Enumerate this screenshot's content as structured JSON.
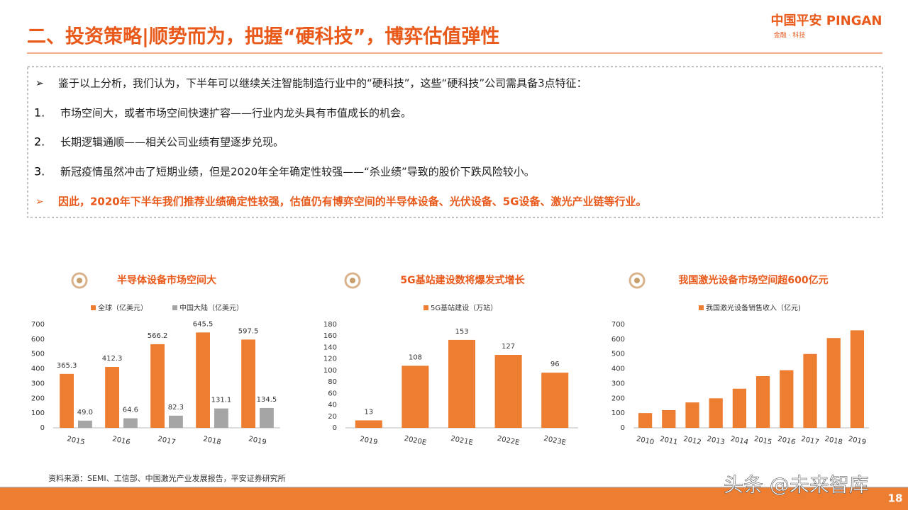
{
  "header": {
    "title": "二、投资策略|顺势而为，把握“硬科技”，博弈估值弹性",
    "logo": "中国平安 PINGAN",
    "logo_sub": "金融 · 科技"
  },
  "bullets": [
    {
      "text": "鉴于以上分析，我们认为，下半年可以继续关注智能制造行业中的“硬科技”，这些“硬科技”公司需具备3点特征："
    },
    {
      "marker": "1.",
      "text": "市场空间大，或者市场空间快速扩容——行业内龙头具有市值成长的机会。"
    },
    {
      "marker": "2.",
      "text": "长期逻辑通顺——相关公司业绩有望逐步兑现。"
    },
    {
      "marker": "3.",
      "text": "新冠疫情虽然冲击了短期业绩，但是2020年全年确定性较强——“杀业绩”导致的股价下跌风险较小。"
    },
    {
      "text": "因此，2020年下半年我们推荐业绩确定性较强，估值仍有博弈空间的半导体设备、光伏设备、5G设备、激光产业链等行业。"
    }
  ],
  "chart_data": [
    {
      "type": "bar",
      "title": "半导体设备市场空间大",
      "categories": [
        "2015",
        "2016",
        "2017",
        "2018",
        "2019"
      ],
      "series": [
        {
          "name": "全球（亿美元）",
          "color": "#ED7D31",
          "values": [
            365.3,
            412.3,
            566.2,
            645.5,
            597.5
          ]
        },
        {
          "name": "中国大陆（亿美元）",
          "color": "#A5A5A5",
          "values": [
            49.0,
            64.6,
            82.3,
            131.1,
            134.5
          ]
        }
      ],
      "value_labels": [
        [
          "365.3",
          "412.3",
          "566.2",
          "645.5",
          "597.5"
        ],
        [
          "49.0",
          "64.6",
          "82.3",
          "131.1",
          "134.5"
        ]
      ],
      "ylim": [
        0,
        700
      ],
      "yticks": [
        0,
        100,
        200,
        300,
        400,
        500,
        600,
        700
      ],
      "data_labels": true
    },
    {
      "type": "bar",
      "title": "5G基站建设数将爆发式增长",
      "categories": [
        "2019",
        "2020E",
        "2021E",
        "2022E",
        "2023E"
      ],
      "series": [
        {
          "name": "5G基站建设（万站）",
          "color": "#ED7D31",
          "values": [
            13,
            108,
            153,
            127,
            96
          ]
        }
      ],
      "ylim": [
        0,
        180
      ],
      "yticks": [
        0,
        20,
        40,
        60,
        80,
        100,
        120,
        140,
        160,
        180
      ],
      "data_labels": true
    },
    {
      "type": "bar",
      "title": "我国激光设备市场空间超600亿元",
      "categories": [
        "2010",
        "2011",
        "2012",
        "2013",
        "2014",
        "2015",
        "2016",
        "2017",
        "2018",
        "2019"
      ],
      "series": [
        {
          "name": "我国激光设备销售收入（亿元)",
          "color": "#ED7D31",
          "values": [
            100,
            120,
            172,
            200,
            265,
            350,
            390,
            500,
            608,
            660
          ]
        }
      ],
      "ylim": [
        0,
        700
      ],
      "yticks": [
        0,
        100,
        200,
        300,
        400,
        500,
        600,
        700
      ],
      "data_labels": false
    }
  ],
  "source": "资料来源：SEMI、工信部、中国激光产业发展报告，平安证券研究所",
  "watermark": "头条 @未来智库",
  "page_number": 18
}
